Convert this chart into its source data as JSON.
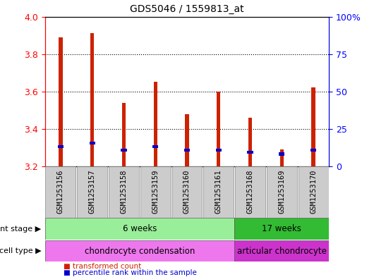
{
  "title": "GDS5046 / 1559813_at",
  "samples": [
    "GSM1253156",
    "GSM1253157",
    "GSM1253158",
    "GSM1253159",
    "GSM1253160",
    "GSM1253161",
    "GSM1253168",
    "GSM1253169",
    "GSM1253170"
  ],
  "transformed_count": [
    3.89,
    3.91,
    3.54,
    3.65,
    3.48,
    3.6,
    3.46,
    3.29,
    3.62
  ],
  "percentile_rank_value": [
    3.305,
    3.325,
    3.285,
    3.305,
    3.285,
    3.285,
    3.275,
    3.265,
    3.285
  ],
  "ymin": 3.2,
  "ymax": 4.0,
  "yticks": [
    3.2,
    3.4,
    3.6,
    3.8,
    4.0
  ],
  "right_yticks": [
    0,
    25,
    50,
    75,
    100
  ],
  "right_yticklabels": [
    "0",
    "25",
    "50",
    "75",
    "100%"
  ],
  "bar_color": "#cc2200",
  "percentile_color": "#0000cc",
  "background_color": "#ffffff",
  "dev_stage_groups": [
    {
      "label": "6 weeks",
      "start": 0,
      "end": 6,
      "color": "#99ee99"
    },
    {
      "label": "17 weeks",
      "start": 6,
      "end": 9,
      "color": "#33bb33"
    }
  ],
  "cell_type_groups": [
    {
      "label": "chondrocyte condensation",
      "start": 0,
      "end": 6,
      "color": "#ee77ee"
    },
    {
      "label": "articular chondrocyte",
      "start": 6,
      "end": 9,
      "color": "#cc33cc"
    }
  ],
  "legend_items": [
    {
      "label": "transformed count",
      "color": "#cc2200"
    },
    {
      "label": "percentile rank within the sample",
      "color": "#0000cc"
    }
  ],
  "bar_width": 0.12,
  "box_color": "#cccccc",
  "spine_color": "#000000"
}
